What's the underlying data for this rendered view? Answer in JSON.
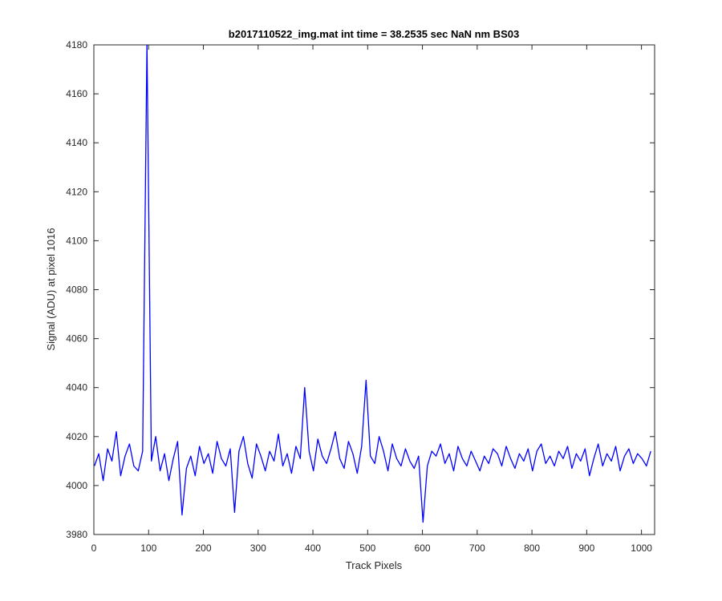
{
  "chart_data": {
    "type": "line",
    "title": "b2017110522_img.mat int time = 38.2535 sec  NaN nm BS03",
    "xlabel": "Track Pixels",
    "ylabel": "Signal (ADU) at pixel 1016",
    "xlim": [
      0,
      1024
    ],
    "ylim": [
      3980,
      4180
    ],
    "xticks": [
      0,
      100,
      200,
      300,
      400,
      500,
      600,
      700,
      800,
      900,
      1000
    ],
    "yticks": [
      3980,
      4000,
      4020,
      4040,
      4060,
      4080,
      4100,
      4120,
      4140,
      4160,
      4180
    ],
    "grid": false,
    "legend": "none",
    "line_color": "#0000ff",
    "series": [
      {
        "x_start": 1,
        "x_step": 8,
        "values": [
          4008,
          4013,
          4002,
          4015,
          4010,
          4022,
          4004,
          4012,
          4017,
          4008,
          4006,
          4014,
          4181,
          4010,
          4020,
          4006,
          4013,
          4002,
          4011,
          4018,
          3988,
          4007,
          4012,
          4004,
          4016,
          4009,
          4013,
          4005,
          4018,
          4011,
          4008,
          4015,
          3989,
          4014,
          4020,
          4009,
          4003,
          4017,
          4012,
          4006,
          4014,
          4010,
          4021,
          4008,
          4013,
          4005,
          4016,
          4011,
          4040,
          4014,
          4006,
          4019,
          4012,
          4009,
          4015,
          4022,
          4011,
          4007,
          4018,
          4013,
          4005,
          4016,
          4043,
          4012,
          4009,
          4020,
          4014,
          4006,
          4017,
          4011,
          4008,
          4015,
          4010,
          4007,
          4012,
          3985,
          4008,
          4014,
          4012,
          4017,
          4009,
          4013,
          4006,
          4016,
          4011,
          4008,
          4014,
          4010,
          4006,
          4012,
          4009,
          4015,
          4013,
          4008,
          4016,
          4011,
          4007,
          4013,
          4010,
          4015,
          4006,
          4014,
          4017,
          4009,
          4012,
          4008,
          4014,
          4011,
          4016,
          4007,
          4013,
          4010,
          4015,
          4004,
          4011,
          4017,
          4008,
          4013,
          4010,
          4016,
          4006,
          4012,
          4015,
          4009,
          4013,
          4011,
          4008,
          4014
        ]
      }
    ]
  }
}
